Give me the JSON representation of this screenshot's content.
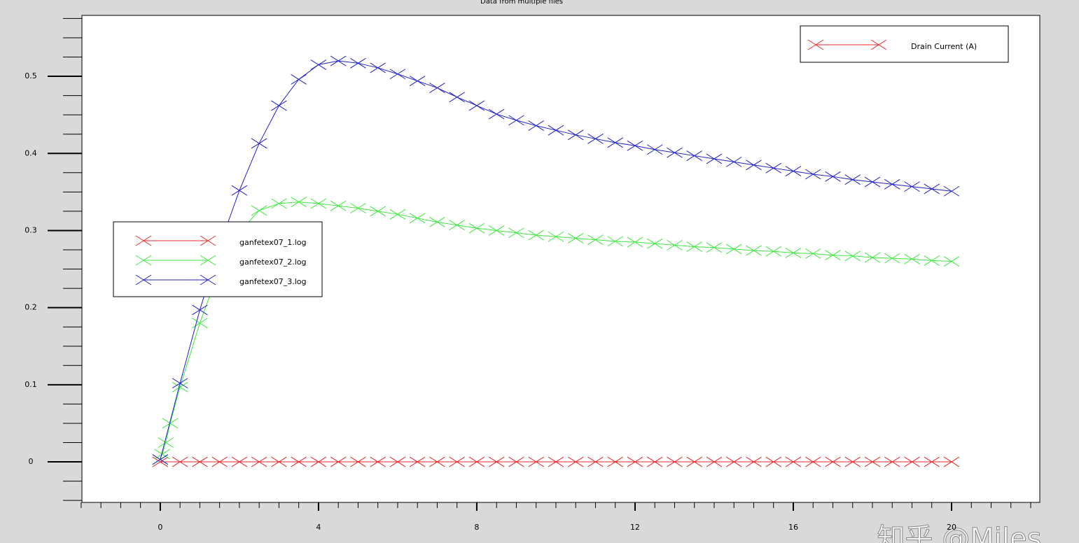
{
  "chart_data": {
    "type": "line",
    "title": "Data from multiple files",
    "ylabel": "Drain Current (A)",
    "ylabel_color": "#e8262a",
    "xlim": [
      -1.98,
      22.23
    ],
    "ylim": [
      -0.0526,
      0.579
    ],
    "xticks": [
      0,
      4,
      8,
      12,
      16,
      20
    ],
    "yticks": [
      0,
      0.1,
      0.2,
      0.3,
      0.4,
      0.5
    ],
    "xminorticks": [
      -2,
      -1.5,
      -1,
      -0.5,
      0.5,
      1,
      1.5,
      2,
      2.5,
      3,
      3.5,
      4.5,
      5,
      5.5,
      6,
      6.5,
      7,
      7.5,
      8.5,
      9,
      9.5,
      10,
      10.5,
      11,
      11.5,
      12.5,
      13,
      13.5,
      14,
      14.5,
      15,
      15.5,
      16.5,
      17,
      17.5,
      18,
      18.5,
      19,
      19.5,
      20.5,
      21,
      21.5,
      22
    ],
    "yminorticks": [
      -0.05,
      -0.025,
      0.025,
      0.05,
      0.075,
      0.125,
      0.15,
      0.175,
      0.225,
      0.25,
      0.275,
      0.325,
      0.35,
      0.375,
      0.425,
      0.45,
      0.475,
      0.525,
      0.55,
      0.575
    ],
    "series": [
      {
        "name": "ganfetex07_1.log",
        "color": "#e8262a",
        "x": [
          0,
          0.5,
          1,
          1.5,
          2,
          2.5,
          3,
          3.5,
          4,
          4.5,
          5,
          5.5,
          6,
          6.5,
          7,
          7.5,
          8,
          8.5,
          9,
          9.5,
          10,
          10.5,
          11,
          11.5,
          12,
          12.5,
          13,
          13.5,
          14,
          14.5,
          15,
          15.5,
          16,
          16.5,
          17,
          17.5,
          18,
          18.5,
          19,
          19.5,
          20
        ],
        "values": [
          0,
          0,
          0,
          0,
          0,
          0,
          0,
          0,
          0,
          0,
          0,
          0,
          0,
          0,
          0,
          0,
          0,
          0,
          0,
          0,
          0,
          0,
          0,
          0,
          0,
          0,
          0,
          0,
          0,
          0,
          0,
          0,
          0,
          0,
          0,
          0,
          0,
          0,
          0,
          0,
          0
        ]
      },
      {
        "name": "ganfetex07_2.log",
        "color": "#3ee83e",
        "x": [
          0,
          0.05,
          0.14,
          0.25,
          0.5,
          1,
          1.5,
          2,
          2.5,
          3,
          3.5,
          4,
          4.5,
          5,
          5.5,
          6,
          6.5,
          7,
          7.5,
          8,
          8.5,
          9,
          9.5,
          10,
          10.5,
          11,
          11.5,
          12,
          12.5,
          13,
          13.5,
          14,
          14.5,
          15,
          15.5,
          16,
          16.5,
          17,
          17.5,
          18,
          18.5,
          19,
          19.5,
          20
        ],
        "values": [
          0.003,
          0.01,
          0.025,
          0.05,
          0.097,
          0.18,
          0.25,
          0.298,
          0.326,
          0.335,
          0.337,
          0.335,
          0.332,
          0.329,
          0.325,
          0.321,
          0.316,
          0.311,
          0.307,
          0.303,
          0.3,
          0.297,
          0.294,
          0.292,
          0.29,
          0.288,
          0.286,
          0.285,
          0.283,
          0.281,
          0.279,
          0.278,
          0.276,
          0.274,
          0.273,
          0.271,
          0.27,
          0.268,
          0.267,
          0.265,
          0.264,
          0.263,
          0.261,
          0.26
        ]
      },
      {
        "name": "ganfetex07_3.log",
        "color": "#2020c8",
        "x": [
          0,
          0.5,
          1,
          1.5,
          2,
          2.5,
          3,
          3.5,
          4,
          4.5,
          5,
          5.5,
          6,
          6.5,
          7,
          7.5,
          8,
          8.5,
          9,
          9.5,
          10,
          10.5,
          11,
          11.5,
          12,
          12.5,
          13,
          13.5,
          14,
          14.5,
          15,
          15.5,
          16,
          16.5,
          17,
          17.5,
          18,
          18.5,
          19,
          19.5,
          20
        ],
        "values": [
          0.003,
          0.102,
          0.197,
          0.28,
          0.352,
          0.413,
          0.462,
          0.496,
          0.515,
          0.52,
          0.517,
          0.511,
          0.503,
          0.494,
          0.485,
          0.473,
          0.462,
          0.451,
          0.443,
          0.436,
          0.43,
          0.424,
          0.419,
          0.414,
          0.41,
          0.405,
          0.401,
          0.397,
          0.393,
          0.389,
          0.385,
          0.381,
          0.377,
          0.373,
          0.37,
          0.366,
          0.363,
          0.36,
          0.357,
          0.354,
          0.351
        ]
      }
    ]
  },
  "watermark": "知乎 @Miles"
}
